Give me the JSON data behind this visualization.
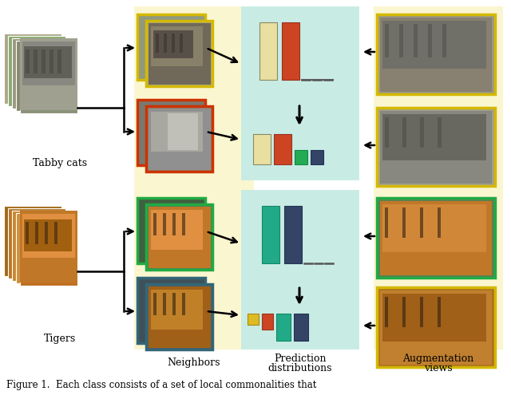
{
  "bg_color": "#ffffff",
  "yellow_bg": "#faf6d0",
  "teal_bg_cat": "#c8ece4",
  "teal_bg_tiger": "#c8ece4",
  "aug_bg": "#faf6d0",
  "border_yellow": "#d4b800",
  "border_red": "#cc3300",
  "border_green": "#22aa44",
  "border_teal_dark": "#336677",
  "bar_cream": "#e8dfa0",
  "bar_red": "#cc4422",
  "bar_green": "#22aa55",
  "bar_navy": "#334466",
  "bar_teal": "#22aa88",
  "bar_gold": "#ddbb22",
  "label_neighbors": "Neighbors",
  "label_pred_line1": "Prediction",
  "label_pred_line2": "distributions",
  "label_aug_line1": "Augmentation",
  "label_aug_line2": "views",
  "label_tabby": "Tabby cats",
  "label_tigers": "Tigers",
  "caption": "Figure 1.  Each class consists of a set of local commonalities that",
  "font_label": 9,
  "font_caption": 8.5
}
